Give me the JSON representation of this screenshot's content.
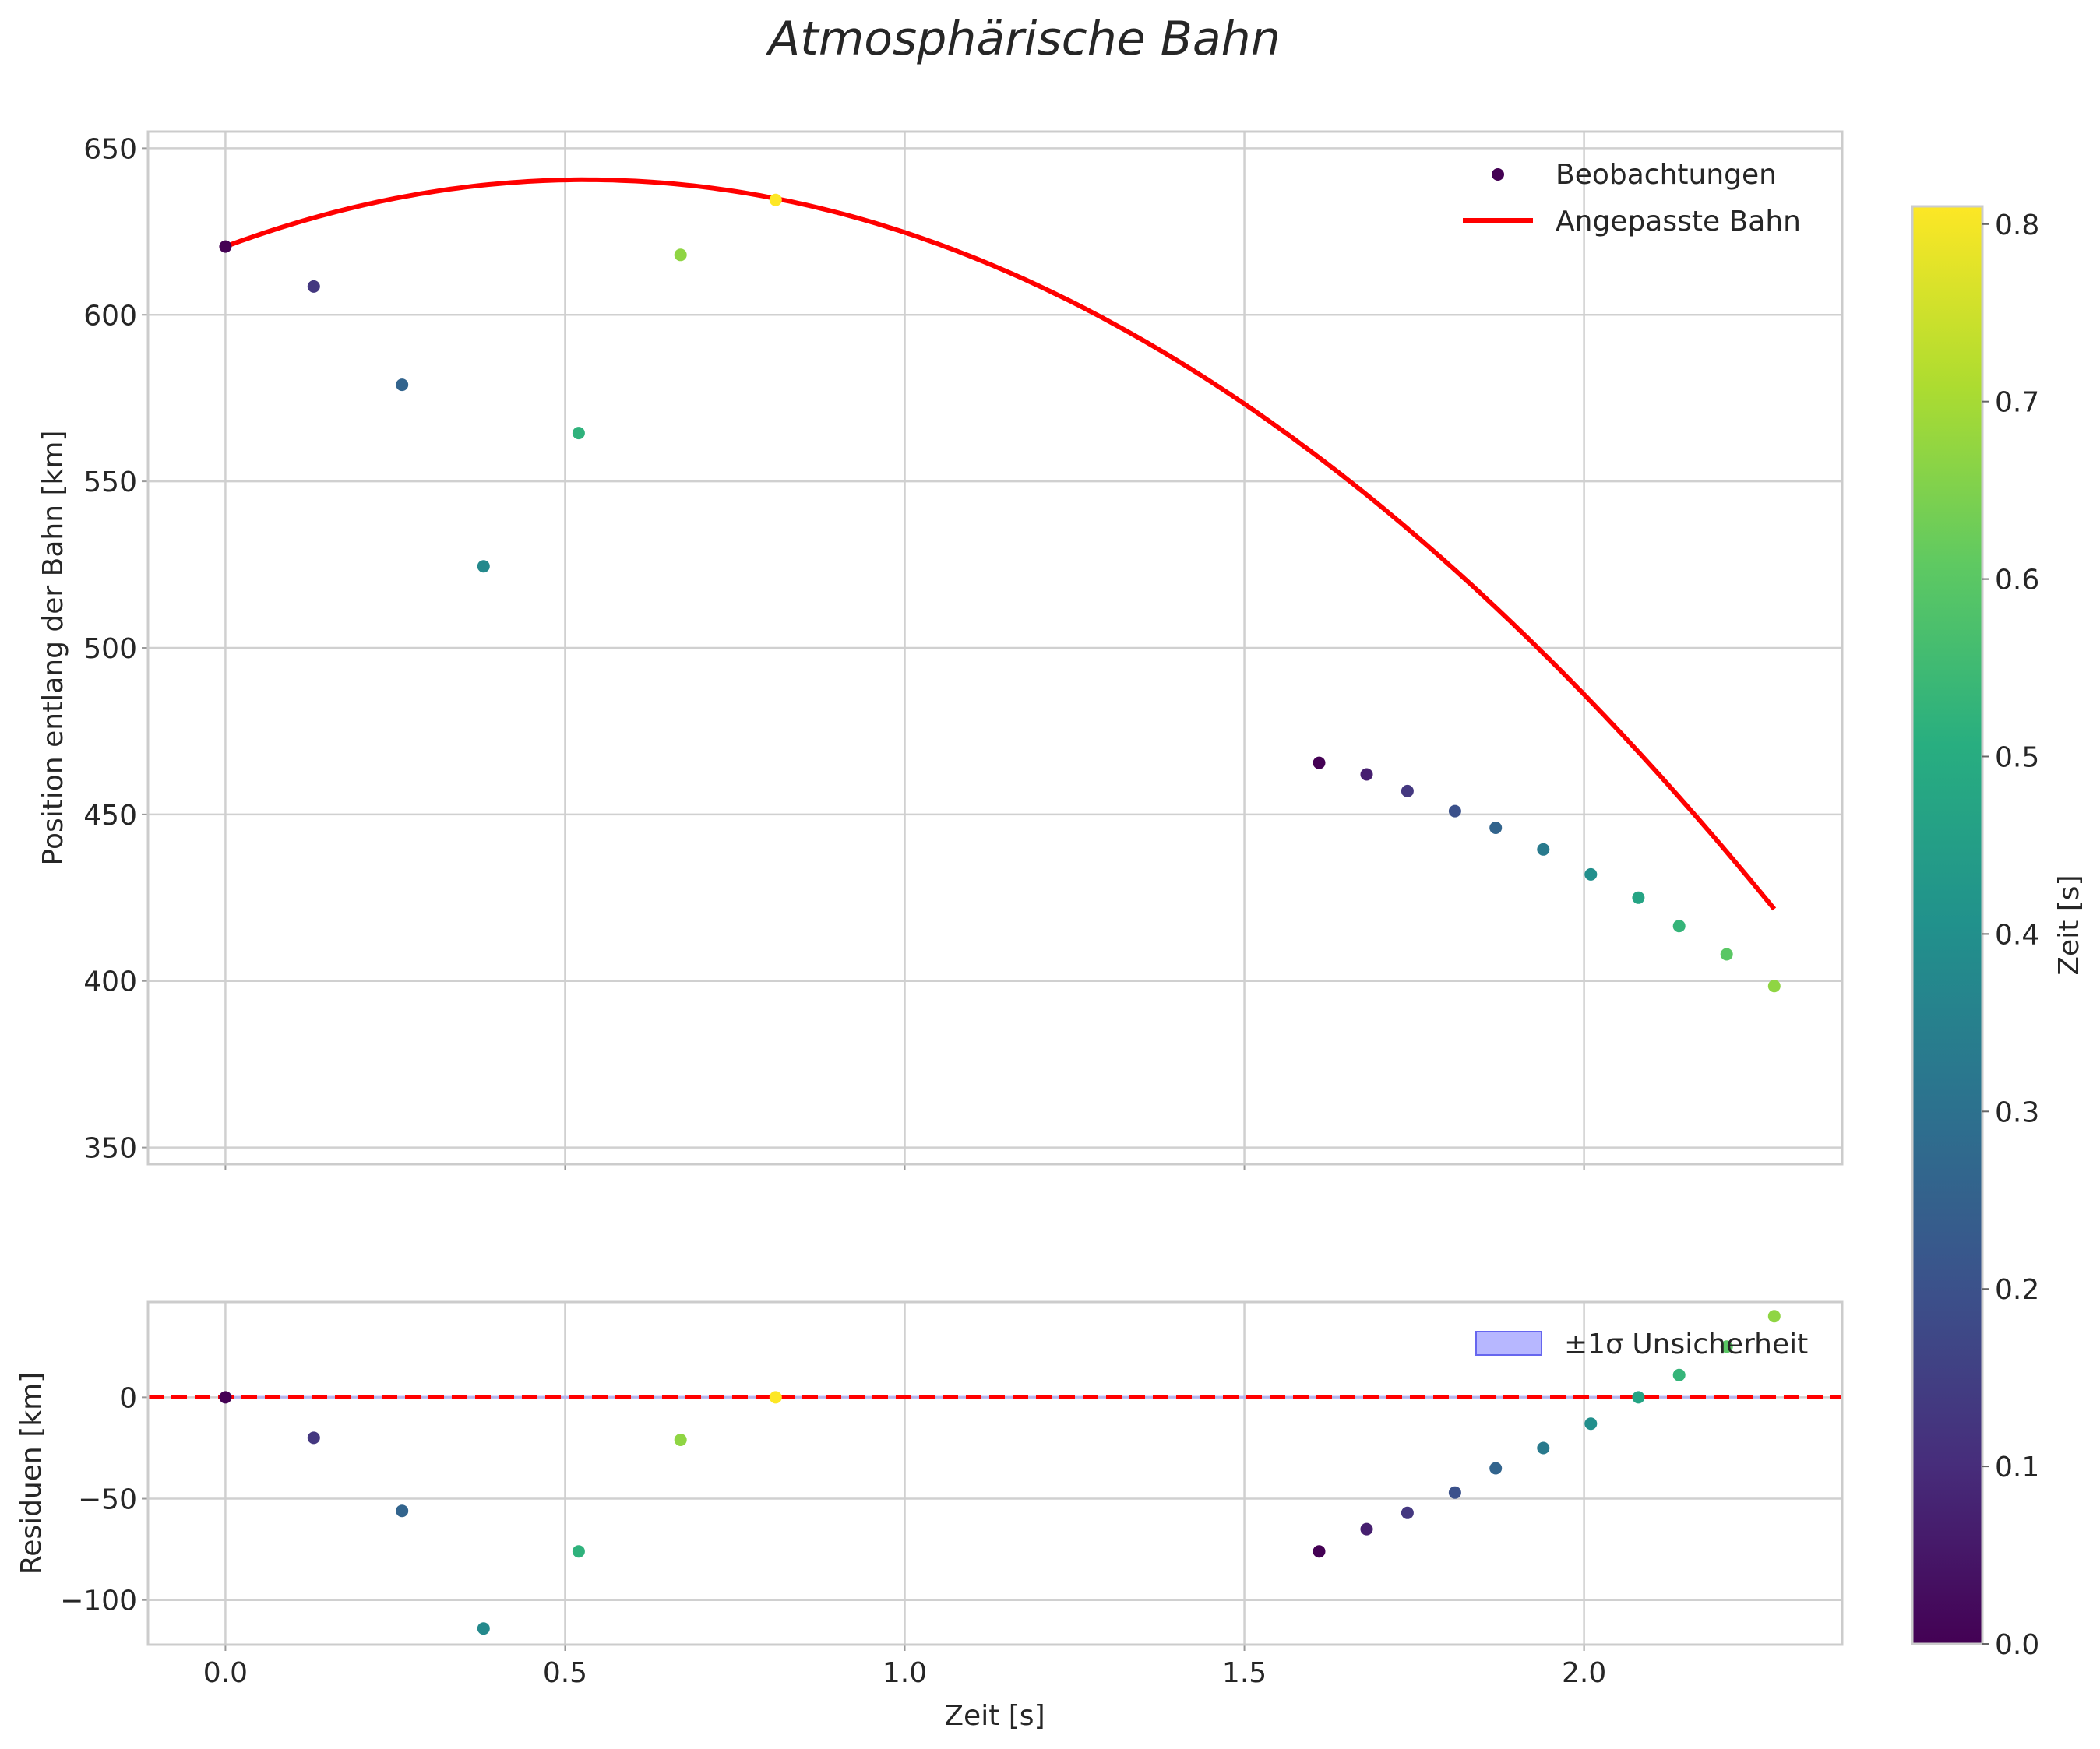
{
  "chart_data": [
    {
      "type": "scatter",
      "title": "Atmosphärische Bahn",
      "xlabel": "",
      "ylabel": "Position entlang der Bahn [km]",
      "xlim": [
        -0.114,
        2.38
      ],
      "ylim": [
        345,
        655
      ],
      "yticks": [
        350,
        400,
        450,
        500,
        550,
        600,
        650
      ],
      "ytick_labels": [
        "350",
        "400",
        "450",
        "500",
        "550",
        "600",
        "650"
      ],
      "xticks": [
        0.0,
        0.5,
        1.0,
        1.5,
        2.0
      ],
      "grid": true,
      "legend": {
        "placement": "top-right",
        "entries": [
          "Beobachtungen",
          "Angepasste Bahn"
        ]
      },
      "series": [
        {
          "name": "Beobachtungen",
          "kind": "scatter",
          "x": [
            0.0,
            0.13,
            0.26,
            0.38,
            0.52,
            0.67,
            0.81,
            1.61,
            1.68,
            1.74,
            1.81,
            1.87,
            1.94,
            2.01,
            2.08,
            2.14,
            2.21,
            2.28
          ],
          "y": [
            620.5,
            608.5,
            579,
            524.5,
            564.5,
            618,
            634.5,
            465.5,
            462,
            457,
            451,
            446,
            439.5,
            432,
            425,
            416.5,
            408,
            398.5
          ],
          "color_values": [
            0.0,
            0.13,
            0.26,
            0.38,
            0.52,
            0.67,
            0.81,
            0.0,
            0.07,
            0.13,
            0.2,
            0.26,
            0.33,
            0.4,
            0.47,
            0.53,
            0.6,
            0.67
          ]
        },
        {
          "name": "Angepasste Bahn",
          "kind": "line",
          "color": "#ff0000",
          "model": {
            "a": -71.46,
            "b": 75.69,
            "c": 620.5
          },
          "x_range": [
            0.0,
            2.28
          ]
        }
      ]
    },
    {
      "type": "scatter",
      "title": "",
      "xlabel": "Zeit [s]",
      "ylabel": "Residuen [km]",
      "xlim": [
        -0.114,
        2.38
      ],
      "ylim": [
        -122,
        47
      ],
      "yticks": [
        -100,
        -50,
        0
      ],
      "ytick_labels": [
        "−100",
        "−50",
        "0"
      ],
      "xticks": [
        0.0,
        0.5,
        1.0,
        1.5,
        2.0
      ],
      "xtick_labels": [
        "0.0",
        "0.5",
        "1.0",
        "1.5",
        "2.0"
      ],
      "grid": true,
      "legend": {
        "placement": "top-right",
        "entries": [
          "±1σ Unsicherheit"
        ]
      },
      "series": [
        {
          "name": "Residuen",
          "kind": "scatter",
          "x": [
            0.0,
            0.13,
            0.26,
            0.38,
            0.52,
            0.67,
            0.81,
            1.61,
            1.68,
            1.74,
            1.81,
            1.87,
            1.94,
            2.01,
            2.08,
            2.14,
            2.21,
            2.28
          ],
          "y": [
            0,
            -20,
            -56,
            -114,
            -76,
            -21,
            0,
            -76,
            -65,
            -57,
            -47,
            -35,
            -25,
            -13,
            0,
            11,
            25,
            40
          ],
          "color_values": [
            0.0,
            0.13,
            0.26,
            0.38,
            0.52,
            0.67,
            0.81,
            0.0,
            0.07,
            0.13,
            0.2,
            0.26,
            0.33,
            0.4,
            0.47,
            0.53,
            0.6,
            0.67
          ]
        },
        {
          "name": "zero-line",
          "kind": "hline",
          "y": 0,
          "color": "#ff0000",
          "style": "dashed"
        }
      ]
    },
    {
      "type": "colorbar",
      "colormap": "viridis",
      "label": "Zeit [s]",
      "range": [
        0.0,
        0.81
      ],
      "ticks": [
        0.0,
        0.1,
        0.2,
        0.3,
        0.4,
        0.5,
        0.6,
        0.7,
        0.8
      ],
      "tick_labels": [
        "0.0",
        "0.1",
        "0.2",
        "0.3",
        "0.4",
        "0.5",
        "0.6",
        "0.7",
        "0.8"
      ]
    }
  ],
  "colors": {
    "fit_line": "#ff0000",
    "zero_line": "#ff0000",
    "uncertainty_band": "#9999ff",
    "grid": "#d0d0d0",
    "frame": "#cccccc",
    "text": "#262626"
  }
}
